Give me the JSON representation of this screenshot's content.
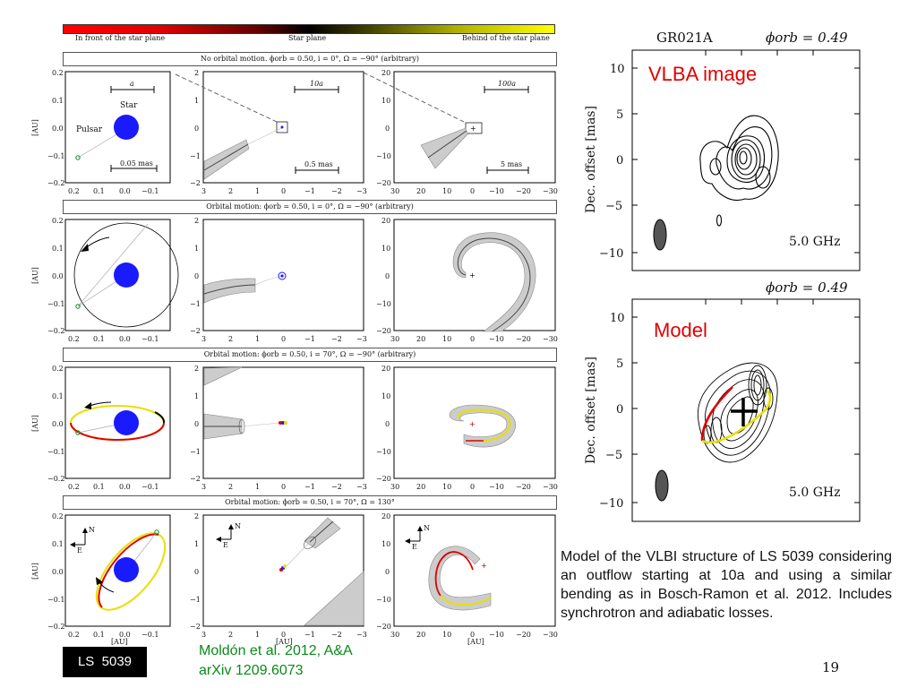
{
  "colorbar": {
    "left_label": "In front of the star plane",
    "center_label": "Star plane",
    "right_label": "Behind of the star plane"
  },
  "rows": [
    {
      "title": "No orbital motion. ϕorb = 0.50, i = 0°, Ω = −90° (arbitrary)"
    },
    {
      "title": "Orbital motion: ϕorb = 0.50, i = 0°, Ω = −90° (arbitrary)"
    },
    {
      "title": "Orbital motion: ϕorb = 0.50, i = 70°, Ω = −90° (arbitrary)"
    },
    {
      "title": "Orbital motion: ϕorb = 0.50, i = 70°, Ω = 130°"
    }
  ],
  "panel_labels": {
    "star": "Star",
    "pulsar": "Pulsar",
    "scale_a": "a",
    "scale_10a": "10a",
    "scale_100a": "100a",
    "scale_005": "0.05 mas",
    "scale_05": "0.5 mas",
    "scale_5": "5 mas",
    "ylabel": "[AU]",
    "xlabel": "[AU]",
    "east": "E",
    "north": "N"
  },
  "vlba": {
    "source": "GR021A",
    "phase": "ϕorb = 0.49",
    "label": "VLBA image",
    "freq": "5.0 GHz",
    "ylabel": "Dec. offset [mas]"
  },
  "model": {
    "phase": "ϕorb = 0.49",
    "label": "Model",
    "freq": "5.0 GHz",
    "ylabel": "Dec. offset [mas]"
  },
  "caption": "Model of the VLBI structure of LS 5039 considering an outflow starting at 10a and using a similar bending as in Bosch-Ramon et al. 2012. Includes synchrotron and adiabatic losses.",
  "reference": {
    "line1": "Moldón et al. 2012, A&A",
    "line2": "arXiv 1209.6073"
  },
  "badge": "LS  5039",
  "page_number": "19",
  "colors": {
    "star": "#1a1aff",
    "red": "#e00000",
    "yellow": "#e8e000",
    "green_ref": "#0a8a18"
  }
}
